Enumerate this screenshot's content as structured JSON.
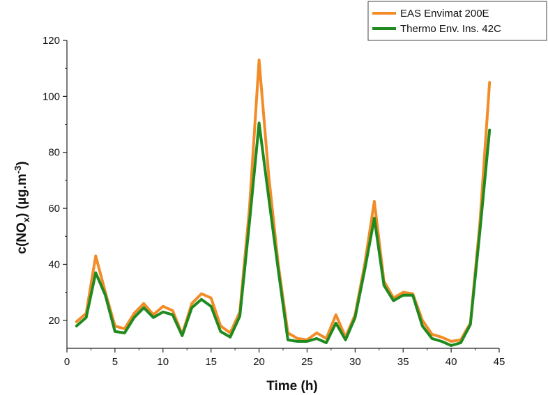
{
  "chart_data": {
    "type": "line",
    "title": "",
    "xlabel": "Time (h)",
    "ylabel": {
      "prefix": "c(NO",
      "sub": "x",
      "middle": ") (µg.m",
      "sup": "-3",
      "suffix": ")"
    },
    "xlim": [
      0,
      45
    ],
    "ylim": [
      10,
      120
    ],
    "xticks": [
      0,
      5,
      10,
      15,
      20,
      25,
      30,
      35,
      40,
      45
    ],
    "yticks": [
      20,
      40,
      60,
      80,
      100,
      120
    ],
    "grid": false,
    "legend_position": "top-right",
    "x": [
      1,
      2,
      3,
      4,
      5,
      6,
      7,
      8,
      9,
      10,
      11,
      12,
      13,
      14,
      15,
      16,
      17,
      18,
      19,
      20,
      21,
      22,
      23,
      24,
      25,
      26,
      27,
      28,
      29,
      30,
      31,
      32,
      33,
      34,
      35,
      36,
      37,
      38,
      39,
      40,
      41,
      42,
      43,
      44
    ],
    "series": [
      {
        "name": "EAS Envimat 200E",
        "color": "#f28c28",
        "values": [
          19.5,
          22.5,
          43,
          30,
          18,
          17,
          22.5,
          26,
          22,
          25,
          23.5,
          15,
          26,
          29.5,
          28,
          18,
          15.5,
          23,
          60,
          113,
          72,
          40,
          15.5,
          13.5,
          13,
          15.5,
          13.5,
          22,
          14,
          22,
          40,
          62.5,
          34,
          28,
          30,
          29.5,
          20,
          15,
          14,
          12.5,
          13,
          19,
          55,
          105
        ]
      },
      {
        "name": "Thermo Env. Ins. 42C",
        "color": "#1f8a1f",
        "values": [
          18,
          21,
          37,
          29,
          16,
          15.5,
          21,
          24.5,
          21,
          23,
          22,
          14.5,
          24.5,
          27.5,
          25,
          16,
          14,
          21.5,
          55,
          90.5,
          64,
          38,
          13,
          12.5,
          12.5,
          13.5,
          12,
          19,
          13,
          21,
          38,
          56.5,
          32.5,
          27,
          29,
          29,
          18,
          13.5,
          12.5,
          11,
          12,
          18.5,
          52,
          88
        ]
      }
    ]
  }
}
